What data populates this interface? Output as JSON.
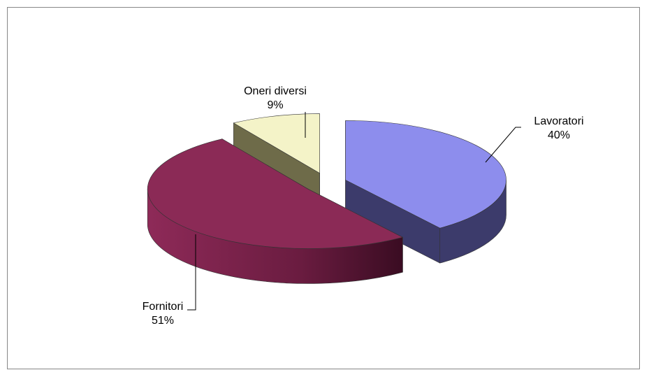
{
  "chart_data": {
    "type": "pie",
    "style": "3d-exploded",
    "categories": [
      "Lavoratori",
      "Fornitori",
      "Oneri diversi"
    ],
    "values": [
      40,
      51,
      9
    ],
    "labels": [
      {
        "name": "Lavoratori",
        "value": "40%"
      },
      {
        "name": "Fornitori",
        "value": "51%"
      },
      {
        "name": "Oneri diversi",
        "value": "9%"
      }
    ],
    "colors": {
      "Lavoratori": {
        "top": "#8d8ded",
        "side": "#3c3b6b"
      },
      "Fornitori": {
        "top": "#8b2a56",
        "side": "#7a2149"
      },
      "Oneri diversi": {
        "top": "#f4f3c8",
        "side": "#6e6b49"
      }
    },
    "legend": "none"
  }
}
